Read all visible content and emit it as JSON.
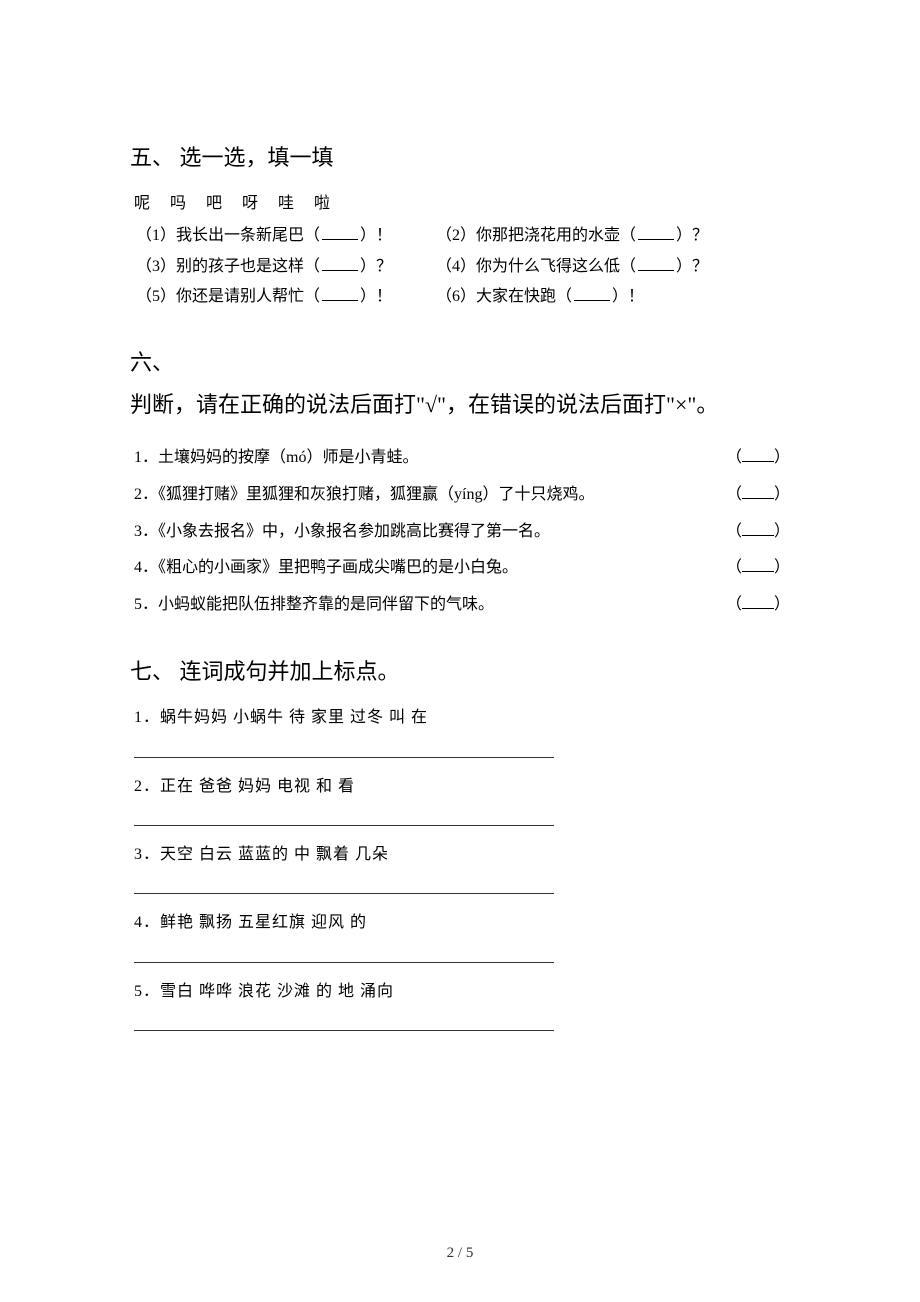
{
  "section5": {
    "header": "五、 选一选，填一填",
    "options": "呢  吗  吧  呀  哇  啦",
    "items": {
      "q1": "（1）我长出一条新尾巴（",
      "q1_end": "）！",
      "q2": "（2）你那把浇花用的水壶（",
      "q2_end": "）？",
      "q3": "（3）别的孩子也是这样（",
      "q3_end": "）？",
      "q4": "（4）你为什么飞得这么低（",
      "q4_end": "）？",
      "q5": "（5）你还是请别人帮忙（",
      "q5_end": "）！",
      "q6": "（6）大家在快跑（",
      "q6_end": "）！"
    }
  },
  "section6": {
    "header_line1": "六、",
    "header_line2": "判断，请在正确的说法后面打\"√\"，在错误的说法后面打\"×\"。",
    "items": {
      "j1": "1．土壤妈妈的按摩（mó）师是小青蛙。",
      "j2": "2．《狐狸打赌》里狐狸和灰狼打赌，狐狸赢（yíng）了十只烧鸡。",
      "j3": "3．《小象去报名》中，小象报名参加跳高比赛得了第一名。",
      "j4": "4．《粗心的小画家》里把鸭子画成尖嘴巴的是小白兔。",
      "j5": "5．小蚂蚁能把队伍排整齐靠的是同伴留下的气味。"
    }
  },
  "section7": {
    "header": "七、 连词成句并加上标点。",
    "items": {
      "s1": "1．蜗牛妈妈    小蜗牛    待    家里    过冬    叫    在",
      "s2": "2．正在    爸爸    妈妈    电视    和    看",
      "s3": "3．天空    白云    蓝蓝的    中    飘着    几朵",
      "s4": "4．鲜艳    飘扬    五星红旗    迎风    的",
      "s5": "5．雪白    哗哗    浪花    沙滩    的    地    涌向"
    }
  },
  "footer": "2 / 5"
}
